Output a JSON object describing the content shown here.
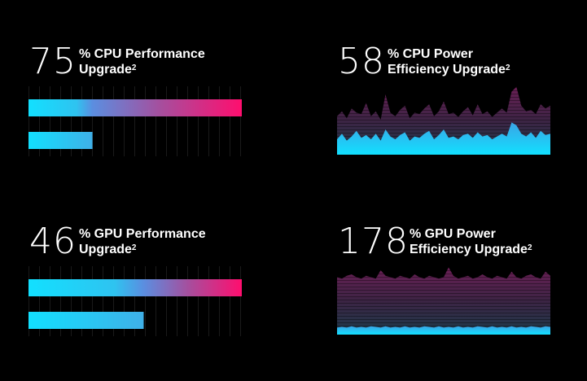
{
  "colors": {
    "background": "#000000",
    "cyan": "#12e0ff",
    "blue_mid": "#5b8ee0",
    "magenta": "#ff0e6e",
    "purple_dark": "#5a1b4d",
    "grid_line": "#2a2a2a"
  },
  "panels": [
    {
      "id": "cpu-performance",
      "number": "75",
      "caption_line1": "% CPU Performance",
      "caption_line2": "Upgrade",
      "superscript": "2",
      "visual": "bars",
      "full_bar_fraction": 1.0,
      "baseline_bar_fraction": 0.3,
      "gradient_split_fraction": 0.3
    },
    {
      "id": "cpu-power",
      "number": "58",
      "caption_line1": "% CPU Power",
      "caption_line2": "Efficiency Upgrade",
      "superscript": "2",
      "visual": "area",
      "top_series": [
        0.55,
        0.62,
        0.52,
        0.66,
        0.6,
        0.58,
        0.74,
        0.55,
        0.62,
        0.5,
        0.86,
        0.6,
        0.55,
        0.64,
        0.7,
        0.52,
        0.6,
        0.58,
        0.66,
        0.72,
        0.55,
        0.62,
        0.76,
        0.58,
        0.6,
        0.54,
        0.62,
        0.68,
        0.56,
        0.72,
        0.58,
        0.62,
        0.54,
        0.6,
        0.66,
        0.6,
        0.9,
        0.97,
        0.7,
        0.62,
        0.64,
        0.58,
        0.72,
        0.66,
        0.7
      ],
      "bottom_series": [
        0.22,
        0.3,
        0.2,
        0.26,
        0.34,
        0.24,
        0.28,
        0.22,
        0.3,
        0.2,
        0.36,
        0.26,
        0.22,
        0.28,
        0.32,
        0.2,
        0.26,
        0.24,
        0.3,
        0.34,
        0.22,
        0.28,
        0.36,
        0.24,
        0.26,
        0.22,
        0.28,
        0.3,
        0.24,
        0.32,
        0.26,
        0.28,
        0.22,
        0.26,
        0.3,
        0.26,
        0.46,
        0.42,
        0.3,
        0.26,
        0.32,
        0.24,
        0.34,
        0.28,
        0.3
      ]
    },
    {
      "id": "gpu-performance",
      "number": "46",
      "caption_line1": "% GPU Performance",
      "caption_line2": "Upgrade",
      "superscript": "2",
      "visual": "bars",
      "full_bar_fraction": 1.0,
      "baseline_bar_fraction": 0.54,
      "gradient_split_fraction": 0.54
    },
    {
      "id": "gpu-power",
      "number": "178",
      "caption_line1": "% GPU Power",
      "caption_line2": "Efficiency Upgrade",
      "superscript": "2",
      "visual": "area",
      "top_series": [
        0.82,
        0.8,
        0.84,
        0.86,
        0.82,
        0.8,
        0.84,
        0.82,
        0.8,
        0.92,
        0.84,
        0.82,
        0.8,
        0.84,
        0.82,
        0.8,
        0.86,
        0.82,
        0.8,
        0.84,
        0.82,
        0.8,
        0.82,
        0.96,
        0.84,
        0.8,
        0.82,
        0.84,
        0.8,
        0.82,
        0.86,
        0.82,
        0.8,
        0.84,
        0.82,
        0.8,
        0.9,
        0.82,
        0.8,
        0.84,
        0.86,
        0.82,
        0.8,
        0.9,
        0.84
      ],
      "bottom_series": [
        0.1,
        0.11,
        0.1,
        0.12,
        0.1,
        0.11,
        0.1,
        0.12,
        0.11,
        0.1,
        0.12,
        0.1,
        0.11,
        0.1,
        0.12,
        0.1,
        0.11,
        0.1,
        0.12,
        0.11,
        0.1,
        0.12,
        0.1,
        0.11,
        0.1,
        0.12,
        0.1,
        0.11,
        0.1,
        0.12,
        0.11,
        0.1,
        0.12,
        0.1,
        0.11,
        0.1,
        0.12,
        0.1,
        0.11,
        0.1,
        0.12,
        0.11,
        0.1,
        0.12,
        0.11
      ]
    }
  ]
}
